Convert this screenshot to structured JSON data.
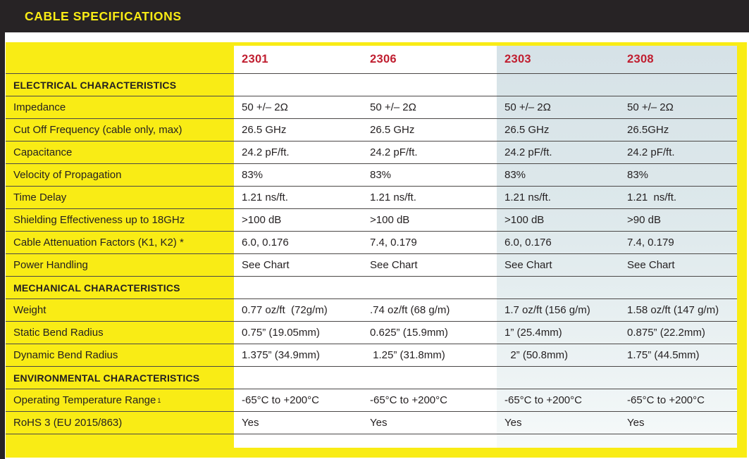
{
  "header": {
    "title": "CABLE SPECIFICATIONS"
  },
  "colors": {
    "accent_yellow": "#f9ec15",
    "bar_black": "#272325",
    "column_header_red": "#c01e30",
    "tint_blue": "#dde8eb",
    "rule_gray": "#4b4847",
    "text": "#231f20"
  },
  "table": {
    "columns": [
      "2301",
      "2306",
      "2303",
      "2308"
    ],
    "sections": [
      {
        "title": "ELECTRICAL CHARACTERISTICS",
        "rows": [
          {
            "label": "Impedance",
            "values": [
              "50 +/– 2Ω",
              "50 +/– 2Ω",
              "50 +/– 2Ω",
              "50 +/– 2Ω"
            ]
          },
          {
            "label": "Cut Off Frequency (cable only, max)",
            "values": [
              "26.5 GHz",
              "26.5 GHz",
              "26.5 GHz",
              "26.5GHz"
            ]
          },
          {
            "label": "Capacitance",
            "values": [
              "24.2 pF/ft.",
              "24.2 pF/ft.",
              "24.2 pF/ft.",
              "24.2 pF/ft."
            ]
          },
          {
            "label": "Velocity of Propagation",
            "values": [
              "83%",
              "83%",
              "83%",
              "83%"
            ]
          },
          {
            "label": "Time Delay",
            "values": [
              "1.21 ns/ft.",
              "1.21 ns/ft.",
              "1.21 ns/ft.",
              "1.21  ns/ft."
            ]
          },
          {
            "label": "Shielding Effectiveness up to 18GHz",
            "values": [
              ">100 dB",
              ">100 dB",
              ">100 dB",
              ">90 dB"
            ]
          },
          {
            "label": "Cable Attenuation Factors (K1, K2) *",
            "values": [
              "6.0, 0.176",
              "7.4, 0.179",
              "6.0, 0.176",
              "7.4, 0.179"
            ]
          },
          {
            "label": "Power Handling",
            "values": [
              "See Chart",
              "See Chart",
              "See Chart",
              "See Chart"
            ]
          }
        ]
      },
      {
        "title": "MECHANICAL CHARACTERISTICS",
        "rows": [
          {
            "label": "Weight",
            "values": [
              "0.77 oz/ft  (72g/m)",
              ".74 oz/ft (68 g/m)",
              "1.7 oz/ft (156 g/m)",
              "1.58 oz/ft (147 g/m)"
            ]
          },
          {
            "label": "Static Bend Radius",
            "values": [
              "0.75” (19.05mm)",
              "0.625” (15.9mm)",
              "1” (25.4mm)",
              "0.875” (22.2mm)"
            ]
          },
          {
            "label": "Dynamic Bend Radius",
            "values": [
              "1.375” (34.9mm)",
              " 1.25” (31.8mm)",
              "  2” (50.8mm)",
              "1.75” (44.5mm)"
            ]
          }
        ]
      },
      {
        "title": "ENVIRONMENTAL CHARACTERISTICS",
        "rows": [
          {
            "label": "Operating Temperature Range",
            "label_sup": "1",
            "values": [
              "-65°C to +200°C",
              "-65°C to +200°C",
              "-65°C to +200°C",
              "-65°C to +200°C"
            ]
          },
          {
            "label": "RoHS 3 (EU 2015/863)",
            "values": [
              "Yes",
              "Yes",
              "Yes",
              "Yes"
            ]
          }
        ]
      }
    ]
  }
}
